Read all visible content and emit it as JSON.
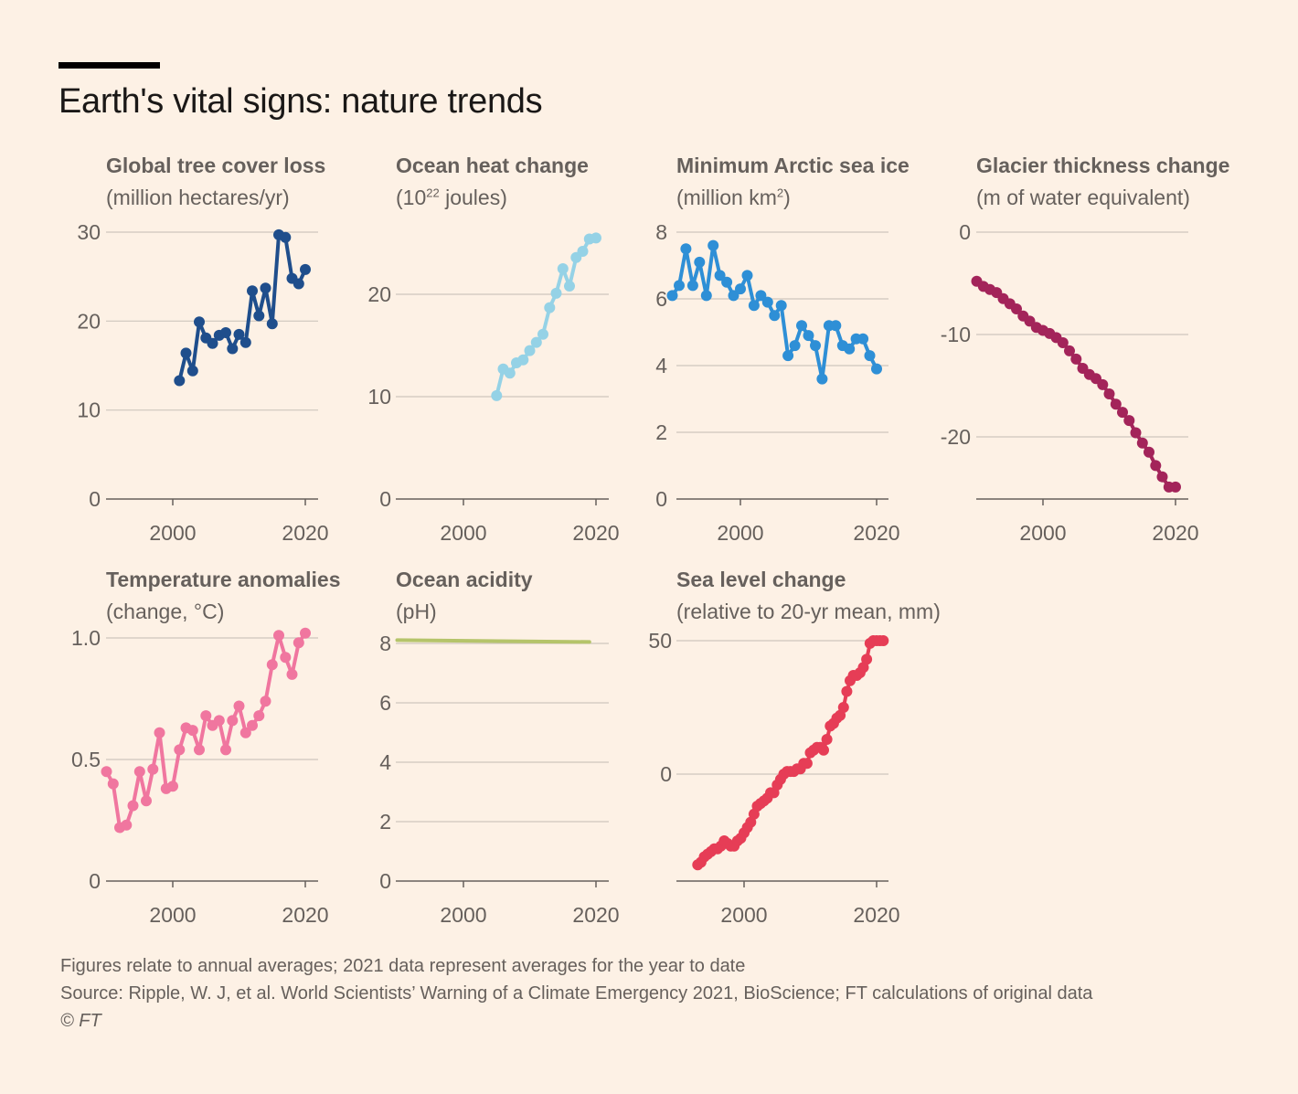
{
  "title": "Earth's vital signs: nature trends",
  "footer": {
    "note": "Figures relate to annual averages; 2021 data represent averages for the year to date",
    "source": "Source: Ripple, W. J, et al. World Scientists’ Warning of a Climate Emergency 2021, BioScience; FT calculations of original data",
    "copyright": "© FT"
  },
  "chart_data": [
    {
      "id": "tree",
      "type": "line",
      "title": "Global tree cover loss",
      "subtitle": "(million hectares/yr)",
      "color": "#1f4e8c",
      "xlim": [
        1990,
        2021
      ],
      "xticks": [
        2000,
        2020
      ],
      "ylim": [
        0,
        30
      ],
      "yticks": [
        0,
        10,
        20,
        30
      ],
      "x": [
        2001,
        2002,
        2003,
        2004,
        2005,
        2006,
        2007,
        2008,
        2009,
        2010,
        2011,
        2012,
        2013,
        2014,
        2015,
        2016,
        2017,
        2018,
        2019,
        2020
      ],
      "values": [
        13.3,
        16.4,
        14.4,
        19.9,
        18.1,
        17.5,
        18.4,
        18.7,
        16.9,
        18.5,
        17.6,
        23.4,
        20.6,
        23.7,
        19.7,
        29.7,
        29.4,
        24.8,
        24.2,
        25.8
      ]
    },
    {
      "id": "oheat",
      "type": "line",
      "title": "Ocean heat change",
      "subtitle": "(10",
      "subtitle_sup": "22",
      "subtitle_end": " joules)",
      "color": "#95d2e6",
      "xlim": [
        1990,
        2021
      ],
      "xticks": [
        2000,
        2020
      ],
      "ylim": [
        0,
        25
      ],
      "yticks": [
        0,
        10,
        20
      ],
      "x": [
        2005,
        2006,
        2007,
        2008,
        2009,
        2010,
        2011,
        2012,
        2013,
        2014,
        2015,
        2016,
        2017,
        2018,
        2019,
        2020
      ],
      "values": [
        10.1,
        12.7,
        12.3,
        13.3,
        13.6,
        14.5,
        15.3,
        16.1,
        18.7,
        20.1,
        22.5,
        20.8,
        23.6,
        24.2,
        25.4,
        25.5
      ]
    },
    {
      "id": "ice",
      "type": "line",
      "title": "Minimum Arctic sea ice",
      "subtitle": "(million km",
      "subtitle_sup": "2",
      "subtitle_end": ")",
      "color": "#2e8fd6",
      "xlim": [
        1990,
        2021
      ],
      "xticks": [
        2000,
        2020
      ],
      "ylim": [
        0,
        8
      ],
      "yticks": [
        0,
        2,
        4,
        6,
        8
      ],
      "x": [
        1990,
        1991,
        1992,
        1993,
        1994,
        1995,
        1996,
        1997,
        1998,
        1999,
        2000,
        2001,
        2002,
        2003,
        2004,
        2005,
        2006,
        2007,
        2008,
        2009,
        2010,
        2011,
        2012,
        2013,
        2014,
        2015,
        2016,
        2017,
        2018,
        2019,
        2020
      ],
      "values": [
        6.1,
        6.4,
        7.5,
        6.4,
        7.1,
        6.1,
        7.6,
        6.7,
        6.5,
        6.1,
        6.3,
        6.7,
        5.8,
        6.1,
        5.9,
        5.5,
        5.8,
        4.3,
        4.6,
        5.2,
        4.9,
        4.6,
        3.6,
        5.2,
        5.2,
        4.6,
        4.5,
        4.8,
        4.8,
        4.3,
        3.9
      ]
    },
    {
      "id": "glacier",
      "type": "line",
      "title": "Glacier thickness change",
      "subtitle": "(m of water equivalent)",
      "color": "#a3245a",
      "xlim": [
        1990,
        2021
      ],
      "xticks": [
        2000,
        2020
      ],
      "ylim": [
        -26,
        0
      ],
      "yticks": [
        0,
        -10,
        -20
      ],
      "x": [
        1990,
        1991,
        1992,
        1993,
        1994,
        1995,
        1996,
        1997,
        1998,
        1999,
        2000,
        2001,
        2002,
        2003,
        2004,
        2005,
        2006,
        2007,
        2008,
        2009,
        2010,
        2011,
        2012,
        2013,
        2014,
        2015,
        2016,
        2017,
        2018,
        2019,
        2020
      ],
      "values": [
        -4.8,
        -5.3,
        -5.6,
        -5.9,
        -6.5,
        -7.0,
        -7.5,
        -8.2,
        -8.7,
        -9.3,
        -9.6,
        -9.9,
        -10.3,
        -10.8,
        -11.6,
        -12.4,
        -13.3,
        -13.9,
        -14.3,
        -14.9,
        -15.8,
        -16.8,
        -17.6,
        -18.4,
        -19.6,
        -20.6,
        -21.5,
        -22.8,
        -23.9,
        -24.9,
        -24.9
      ]
    },
    {
      "id": "temp",
      "type": "line",
      "title": "Temperature anomalies",
      "subtitle": "(change, °C)",
      "color": "#f0769f",
      "xlim": [
        1990,
        2021
      ],
      "xticks": [
        2000,
        2020
      ],
      "ylim": [
        0,
        1.0
      ],
      "yticks": [
        0,
        0.5,
        1.0
      ],
      "yticklabels": [
        "0",
        "0.5",
        "1.0"
      ],
      "x": [
        1990,
        1991,
        1992,
        1993,
        1994,
        1995,
        1996,
        1997,
        1998,
        1999,
        2000,
        2001,
        2002,
        2003,
        2004,
        2005,
        2006,
        2007,
        2008,
        2009,
        2010,
        2011,
        2012,
        2013,
        2014,
        2015,
        2016,
        2017,
        2018,
        2019,
        2020
      ],
      "values": [
        0.45,
        0.4,
        0.22,
        0.23,
        0.31,
        0.45,
        0.33,
        0.46,
        0.61,
        0.38,
        0.39,
        0.54,
        0.63,
        0.62,
        0.54,
        0.68,
        0.64,
        0.66,
        0.54,
        0.66,
        0.72,
        0.61,
        0.64,
        0.68,
        0.74,
        0.89,
        1.01,
        0.92,
        0.85,
        0.98,
        1.02
      ]
    },
    {
      "id": "acid",
      "type": "line",
      "title": "Ocean acidity",
      "subtitle": "(pH)",
      "color": "#b5c46a",
      "markers": false,
      "xlim": [
        1990,
        2021
      ],
      "xticks": [
        2000,
        2020
      ],
      "ylim": [
        0,
        8
      ],
      "yticks": [
        0,
        2,
        4,
        6,
        8
      ],
      "x": [
        1990,
        2019
      ],
      "values": [
        8.11,
        8.05
      ]
    },
    {
      "id": "sea",
      "type": "line",
      "title": "Sea level change",
      "subtitle": "(relative to 20-yr mean, mm)",
      "color": "#e63d56",
      "xlim": [
        1990,
        2021
      ],
      "xticks": [
        2000,
        2020
      ],
      "ylim": [
        -40,
        50
      ],
      "yticks": [
        0,
        50
      ],
      "x": [
        1993.0,
        1993.5,
        1994.0,
        1994.5,
        1995.0,
        1995.5,
        1996.0,
        1996.5,
        1997.0,
        1997.5,
        1998.0,
        1998.5,
        1999.0,
        1999.5,
        2000.0,
        2000.5,
        2001.0,
        2001.5,
        2002.0,
        2002.5,
        2003.0,
        2003.5,
        2004.0,
        2004.5,
        2005.0,
        2005.5,
        2006.0,
        2006.5,
        2007.0,
        2007.5,
        2008.0,
        2008.5,
        2009.0,
        2009.5,
        2010.0,
        2010.5,
        2011.0,
        2011.5,
        2012.0,
        2012.5,
        2013.0,
        2013.5,
        2014.0,
        2014.5,
        2015.0,
        2015.5,
        2016.0,
        2016.5,
        2017.0,
        2017.5,
        2018.0,
        2018.5,
        2019.0,
        2019.5,
        2020.0,
        2020.5,
        2021.0
      ],
      "values": [
        -34,
        -33,
        -31,
        -30,
        -29,
        -28,
        -28,
        -27,
        -25,
        -26,
        -27,
        -27,
        -25,
        -24,
        -22,
        -20,
        -18,
        -15,
        -12,
        -11,
        -10,
        -9,
        -7,
        -7,
        -4,
        -2,
        0,
        1,
        1,
        1,
        2,
        2,
        4,
        4,
        8,
        9,
        10,
        10,
        9,
        13,
        18,
        19,
        21,
        22,
        25,
        31,
        35,
        37,
        37,
        38,
        40,
        43,
        49,
        50,
        50,
        50,
        50
      ]
    }
  ]
}
